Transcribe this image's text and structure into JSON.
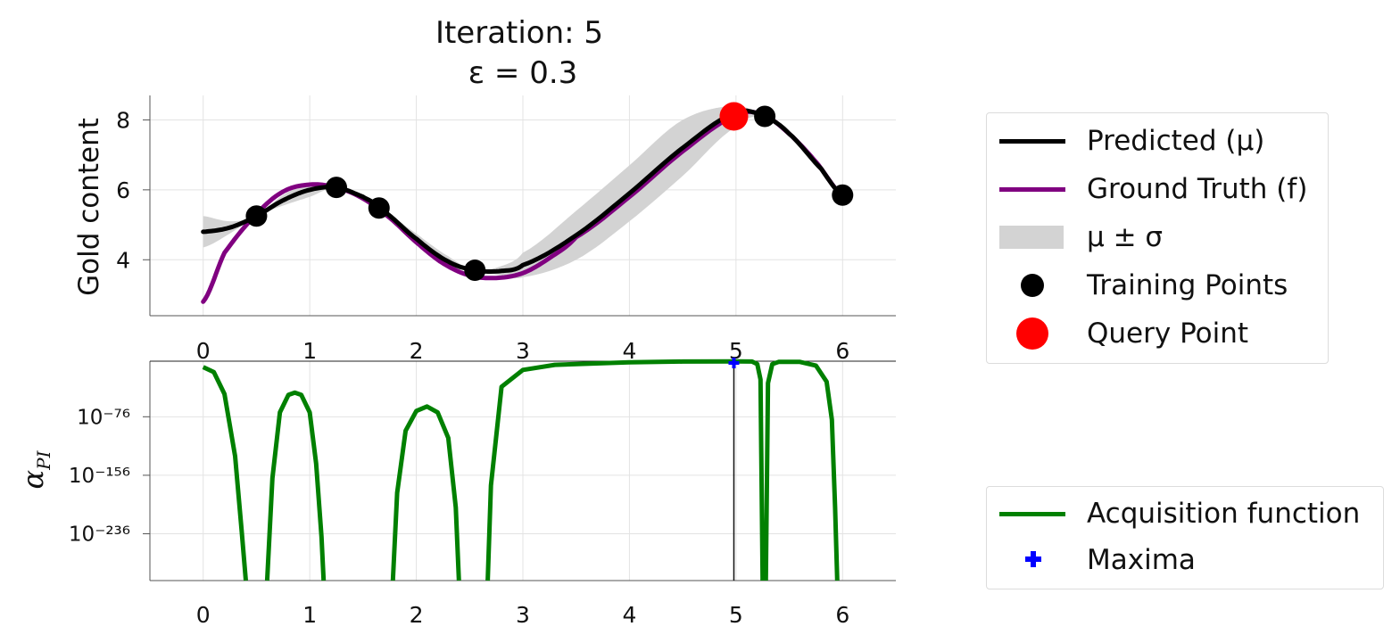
{
  "title": {
    "line1": "Iteration: 5",
    "line2": "ε = 0.3"
  },
  "colors": {
    "predicted": "#000000",
    "ground_truth": "#800080",
    "band": "#d3d3d3",
    "training": "#000000",
    "query": "#ff0000",
    "acquisition": "#008000",
    "maxima": "#0000ff"
  },
  "chart_data": [
    {
      "type": "line",
      "ylabel": "Gold content",
      "xlim": [
        -0.5,
        6.5
      ],
      "ylim": [
        2.4,
        8.7
      ],
      "grid": true,
      "xticks": [
        0,
        1,
        2,
        3,
        4,
        5,
        6
      ],
      "yticks": [
        4,
        6,
        8
      ],
      "legend_placement": "right",
      "series": [
        {
          "name": "Predicted (μ)",
          "type": "line",
          "x": [
            0,
            0.25,
            0.5,
            0.75,
            1.0,
            1.25,
            1.5,
            1.65,
            2.0,
            2.3,
            2.55,
            2.8,
            3.0,
            3.5,
            4.0,
            4.5,
            5.0,
            5.27,
            5.5,
            5.8,
            6.0
          ],
          "y": [
            4.8,
            4.92,
            5.25,
            5.7,
            6.0,
            6.07,
            5.8,
            5.48,
            4.6,
            3.95,
            3.7,
            3.68,
            3.85,
            4.7,
            5.9,
            7.2,
            8.2,
            8.1,
            7.6,
            6.6,
            5.85
          ]
        },
        {
          "name": "Ground Truth (f)",
          "type": "line",
          "x": [
            0,
            0.2,
            0.5,
            0.75,
            1.0,
            1.25,
            1.5,
            1.75,
            2.0,
            2.25,
            2.5,
            2.75,
            3.0,
            3.25,
            3.5,
            4.0,
            4.5,
            5.0,
            5.25,
            5.5,
            5.75,
            6.0
          ],
          "y": [
            2.8,
            4.2,
            5.3,
            5.95,
            6.15,
            6.07,
            5.75,
            5.2,
            4.5,
            3.9,
            3.55,
            3.48,
            3.62,
            4.05,
            4.65,
            5.8,
            7.1,
            8.12,
            8.15,
            7.6,
            6.8,
            5.85
          ]
        },
        {
          "name": "μ ± σ",
          "type": "band",
          "x": [
            0,
            0.25,
            0.5,
            0.75,
            1.0,
            1.25,
            1.5,
            1.65,
            2.0,
            2.3,
            2.55,
            2.8,
            3.0,
            3.5,
            4.0,
            4.5,
            5.0,
            5.27,
            5.5,
            5.8,
            6.0
          ],
          "lower": [
            4.35,
            4.75,
            5.25,
            5.55,
            5.8,
            6.07,
            5.75,
            5.48,
            4.45,
            3.8,
            3.7,
            3.55,
            3.5,
            4.0,
            5.1,
            6.4,
            7.8,
            8.1,
            7.55,
            6.55,
            5.85
          ],
          "upper": [
            5.25,
            5.1,
            5.25,
            5.85,
            6.2,
            6.07,
            5.85,
            5.48,
            4.75,
            4.1,
            3.7,
            3.82,
            4.2,
            5.4,
            6.7,
            8.0,
            8.4,
            8.1,
            7.65,
            6.65,
            5.85
          ]
        },
        {
          "name": "Training Points",
          "type": "scatter",
          "x": [
            0.5,
            1.25,
            1.65,
            2.55,
            5.27,
            6.0
          ],
          "y": [
            5.25,
            6.07,
            5.48,
            3.7,
            8.1,
            5.85
          ]
        },
        {
          "name": "Query Point",
          "type": "scatter",
          "x": [
            4.98
          ],
          "y": [
            8.1
          ]
        }
      ]
    },
    {
      "type": "line",
      "ylabel": "α_PI",
      "yscale": "log",
      "xlim": [
        -0.5,
        6.5
      ],
      "ylim_exponent": [
        -300,
        0
      ],
      "grid": true,
      "xticks": [
        0,
        1,
        2,
        3,
        4,
        5,
        6
      ],
      "ytick_labels": [
        "10⁻⁷⁶",
        "10⁻¹⁵⁶",
        "10⁻²³⁶"
      ],
      "ytick_exponents": [
        -76,
        -156,
        -236
      ],
      "legend_placement": "right",
      "query_line_x": 4.98,
      "series": [
        {
          "name": "Acquisition function",
          "type": "line",
          "segments": [
            {
              "x": [
                0,
                0.1,
                0.2,
                0.3,
                0.36,
                0.4
              ],
              "log10_y": [
                -8,
                -15,
                -45,
                -130,
                -230,
                -300
              ]
            },
            {
              "x": [
                0.6,
                0.65,
                0.72,
                0.8,
                0.86,
                0.92,
                1.0,
                1.06,
                1.11,
                1.13
              ],
              "log10_y": [
                -300,
                -160,
                -70,
                -46,
                -43,
                -46,
                -70,
                -140,
                -240,
                -300
              ]
            },
            {
              "x": [
                1.78,
                1.82,
                1.9,
                2.0,
                2.1,
                2.2,
                2.3,
                2.37,
                2.4
              ],
              "log10_y": [
                -300,
                -180,
                -95,
                -68,
                -62,
                -70,
                -105,
                -200,
                -300
              ]
            },
            {
              "x": [
                2.67,
                2.7,
                2.8,
                3.0,
                3.3,
                4.0,
                4.5,
                5.0,
                5.15,
                5.2,
                5.23,
                5.25
              ],
              "log10_y": [
                -300,
                -170,
                -35,
                -12,
                -5,
                -1.5,
                -0.5,
                -0.2,
                -0.5,
                -4,
                -25,
                -300
              ]
            },
            {
              "x": [
                5.28,
                5.3,
                5.34,
                5.4,
                5.6,
                5.75,
                5.85,
                5.9,
                5.93,
                5.95
              ],
              "log10_y": [
                -300,
                -30,
                -4,
                -1,
                -1,
                -6,
                -28,
                -80,
                -200,
                -300
              ]
            }
          ]
        },
        {
          "name": "Maxima",
          "type": "scatter",
          "x": [
            4.98
          ],
          "log10_y": [
            0
          ]
        }
      ]
    }
  ],
  "legend_top": [
    {
      "label": "Predicted (μ)",
      "swatch": "line",
      "color_key": "predicted"
    },
    {
      "label": "Ground Truth (f)",
      "swatch": "line",
      "color_key": "ground_truth"
    },
    {
      "label": "μ ± σ",
      "swatch": "band",
      "color_key": "band"
    },
    {
      "label": "Training Points",
      "swatch": "dot",
      "color_key": "training"
    },
    {
      "label": "Query Point",
      "swatch": "bigdot",
      "color_key": "query"
    }
  ],
  "legend_bottom": [
    {
      "label": "Acquisition function",
      "swatch": "line",
      "color_key": "acquisition"
    },
    {
      "label": "Maxima",
      "swatch": "plus",
      "color_key": "maxima"
    }
  ]
}
